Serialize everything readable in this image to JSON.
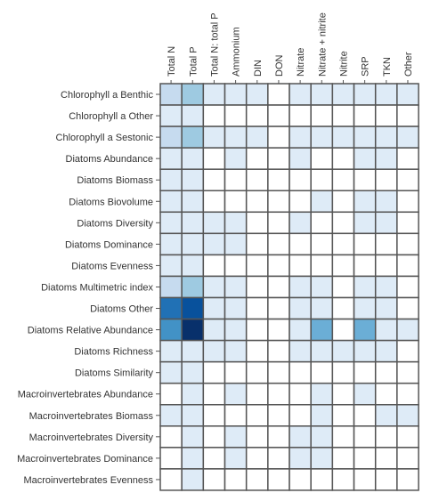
{
  "chart_data": {
    "type": "heatmap",
    "title": "",
    "xlabel": "",
    "ylabel": "",
    "columns": [
      "Total N",
      "Total P",
      "Total N: total P",
      "Ammonium",
      "DIN",
      "DON",
      "Nitrate",
      "Nitrate + nitrite",
      "Nitrite",
      "SRP",
      "TKN",
      "Other"
    ],
    "rows": [
      "Chlorophyll a Benthic",
      "Chlorophyll a Other",
      "Chlorophyll a Sestonic",
      "Diatoms Abundance",
      "Diatoms Biomass",
      "Diatoms Biovolume",
      "Diatoms Diversity",
      "Diatoms Dominance",
      "Diatoms Evenness",
      "Diatoms Multimetric index",
      "Diatoms Other",
      "Diatoms Relative Abundance",
      "Diatoms Richness",
      "Diatoms Similarity",
      "Macroinvertebrates Abundance",
      "Macroinvertebrates Biomass",
      "Macroinvertebrates Diversity",
      "Macroinvertebrates Dominance",
      "Macroinvertebrates Evenness"
    ],
    "values": [
      [
        2,
        3,
        1,
        1,
        1,
        0,
        1,
        1,
        1,
        1,
        1,
        1
      ],
      [
        1,
        1,
        0,
        0,
        0,
        0,
        0,
        0,
        0,
        0,
        0,
        0
      ],
      [
        2,
        3,
        1,
        1,
        1,
        0,
        1,
        1,
        1,
        1,
        1,
        1
      ],
      [
        1,
        1,
        0,
        1,
        0,
        0,
        1,
        0,
        0,
        1,
        1,
        0
      ],
      [
        1,
        1,
        0,
        0,
        0,
        0,
        0,
        0,
        0,
        0,
        0,
        0
      ],
      [
        1,
        1,
        0,
        0,
        0,
        0,
        0,
        1,
        0,
        1,
        1,
        0
      ],
      [
        1,
        1,
        1,
        1,
        0,
        0,
        1,
        0,
        0,
        1,
        1,
        0
      ],
      [
        1,
        1,
        1,
        1,
        0,
        0,
        0,
        0,
        0,
        0,
        0,
        0
      ],
      [
        1,
        1,
        0,
        0,
        0,
        0,
        0,
        0,
        0,
        0,
        0,
        0
      ],
      [
        2,
        3,
        1,
        1,
        0,
        0,
        1,
        1,
        0,
        1,
        1,
        0
      ],
      [
        6,
        7,
        1,
        1,
        0,
        0,
        1,
        1,
        0,
        1,
        1,
        0
      ],
      [
        5,
        9,
        1,
        1,
        0,
        0,
        1,
        4,
        0,
        4,
        1,
        1
      ],
      [
        1,
        1,
        1,
        1,
        0,
        0,
        1,
        1,
        1,
        1,
        1,
        0
      ],
      [
        1,
        1,
        0,
        0,
        0,
        0,
        0,
        0,
        0,
        0,
        0,
        0
      ],
      [
        0,
        1,
        0,
        1,
        0,
        0,
        0,
        1,
        0,
        1,
        0,
        0
      ],
      [
        1,
        1,
        0,
        0,
        0,
        0,
        0,
        1,
        0,
        0,
        1,
        1
      ],
      [
        0,
        1,
        0,
        1,
        0,
        0,
        1,
        1,
        0,
        0,
        0,
        0
      ],
      [
        0,
        1,
        0,
        1,
        0,
        0,
        1,
        1,
        0,
        0,
        0,
        0
      ],
      [
        0,
        1,
        0,
        0,
        0,
        0,
        0,
        0,
        0,
        0,
        0,
        0
      ]
    ],
    "value_range": [
      0,
      9
    ],
    "colors": {
      "zero": "#ffffff",
      "scale": [
        "#deebf7",
        "#c6dbef",
        "#9ecae1",
        "#6baed6",
        "#4292c6",
        "#2171b5",
        "#08519c",
        "#083b7a",
        "#08306b"
      ],
      "grid": "#555555",
      "text": "#333333"
    },
    "grid": true,
    "legend": "none"
  }
}
